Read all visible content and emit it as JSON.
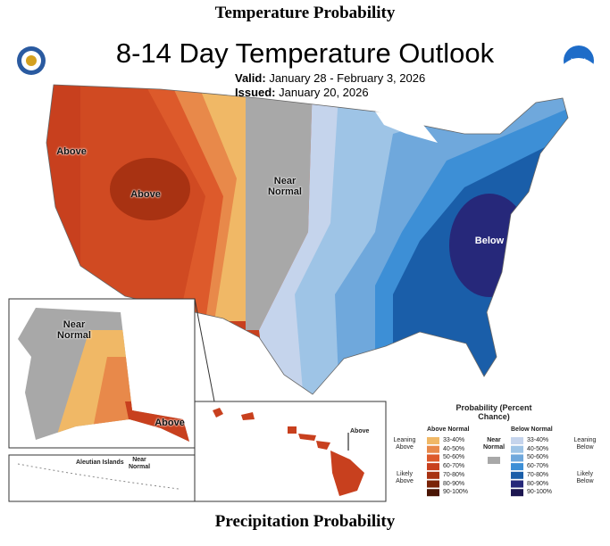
{
  "header": {
    "title": "Temperature Probability",
    "map_title": "8-14 Day Temperature Outlook",
    "valid_label": "Valid:",
    "valid": "January 28 - February 3, 2026",
    "issued_label": "Issued:",
    "issued": "January 20, 2026",
    "noaa": "NOAA"
  },
  "map_labels": [
    "Above",
    "Above",
    "Near Normal",
    "Below",
    "Near Normal",
    "Above",
    "Above",
    "Aleutian Islands",
    "Near Normal"
  ],
  "legend": {
    "title": "Probability (Percent Chance)",
    "above_heading": "Above Normal",
    "below_heading": "Below Normal",
    "near": "Near Normal",
    "leaning_above": "Leaning Above",
    "likely_above": "Likely Above",
    "leaning_below": "Leaning Below",
    "likely_below": "Likely Below",
    "above_bins": [
      "33-40%",
      "40-50%",
      "50-60%",
      "60-70%",
      "70-80%",
      "80-90%",
      "90-100%"
    ],
    "below_bins": [
      "33-40%",
      "40-50%",
      "50-60%",
      "60-70%",
      "70-80%",
      "80-90%",
      "90-100%"
    ]
  },
  "footer": {
    "title": "Precipitation Probability"
  }
}
